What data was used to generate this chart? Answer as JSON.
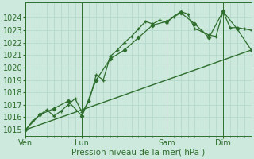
{
  "xlabel": "Pression niveau de la mer( hPa )",
  "bg_color": "#cde8dc",
  "grid_color": "#b0d8c8",
  "line_color": "#2d6e2d",
  "ylim": [
    1014.5,
    1025.2
  ],
  "yticks": [
    1015,
    1016,
    1017,
    1018,
    1019,
    1020,
    1021,
    1022,
    1023,
    1024
  ],
  "xtick_labels": [
    "Ven",
    "Lun",
    "Sam",
    "Dim"
  ],
  "xtick_positions": [
    0,
    48,
    120,
    168
  ],
  "vline_positions": [
    0,
    48,
    120,
    168
  ],
  "xlim": [
    0,
    192
  ],
  "series1_x": [
    0,
    6,
    12,
    18,
    24,
    30,
    36,
    42,
    48,
    54,
    60,
    66,
    72,
    78,
    84,
    90,
    96,
    102,
    108,
    114,
    120,
    126,
    132,
    138,
    144,
    150,
    156,
    162,
    168,
    174,
    180,
    186,
    192
  ],
  "series1_y": [
    1015.0,
    1015.7,
    1016.2,
    1016.6,
    1016.1,
    1016.5,
    1017.0,
    1017.5,
    1016.4,
    1017.3,
    1019.4,
    1019.0,
    1020.9,
    1021.4,
    1022.0,
    1022.5,
    1023.1,
    1023.7,
    1023.5,
    1023.8,
    1023.6,
    1024.1,
    1024.5,
    1024.3,
    1023.1,
    1022.9,
    1022.6,
    1022.5,
    1024.5,
    1023.2,
    1023.2,
    1023.1,
    1023.0
  ],
  "series2_x": [
    0,
    12,
    24,
    36,
    48,
    60,
    72,
    84,
    96,
    108,
    120,
    132,
    144,
    156,
    168,
    180,
    192
  ],
  "series2_y": [
    1015.0,
    1016.2,
    1016.7,
    1017.3,
    1016.1,
    1019.0,
    1020.7,
    1021.4,
    1022.4,
    1023.4,
    1023.7,
    1024.4,
    1023.5,
    1022.4,
    1024.5,
    1023.1,
    1021.4
  ],
  "series3_x": [
    0,
    192
  ],
  "series3_y": [
    1015.0,
    1021.4
  ],
  "xlabel_fontsize": 7.5,
  "tick_fontsize": 7
}
